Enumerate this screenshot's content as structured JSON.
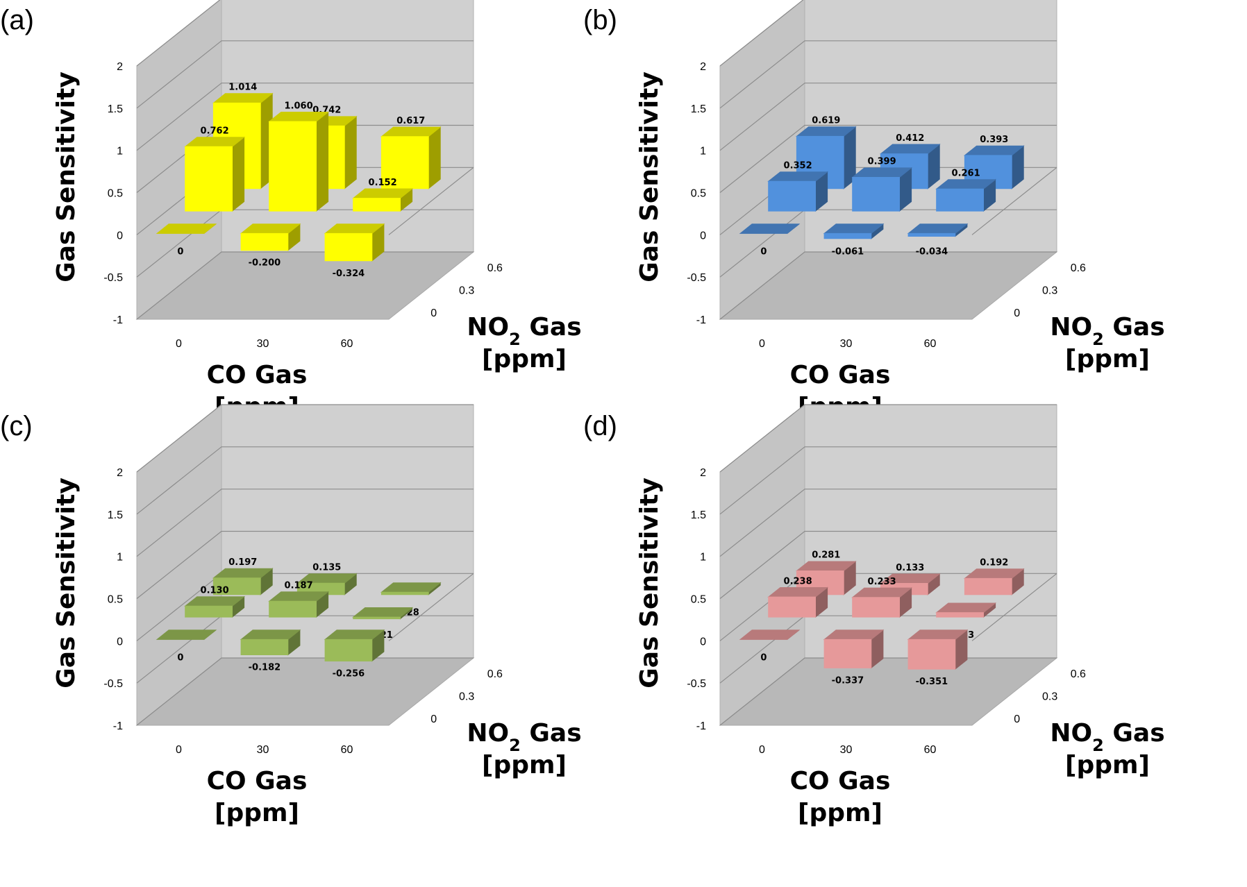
{
  "chart_data": [
    {
      "panel_label": "(a)",
      "type": "bar3d",
      "ylabel": "Gas Sensitivity",
      "xlabel": [
        "CO Gas",
        "[ppm]"
      ],
      "zlabel": [
        "NO",
        "2",
        " Gas",
        "[ppm]"
      ],
      "x_categories": [
        "0",
        "30",
        "60"
      ],
      "z_categories": [
        "0",
        "0.3",
        "0.6"
      ],
      "y_ticks": [
        "-1",
        "-0.5",
        "0",
        "0.5",
        "1",
        "1.5",
        "2"
      ],
      "ylim": [
        -1,
        2
      ],
      "color": "#ffff00",
      "series": [
        {
          "z": "0",
          "values": [
            0,
            -0.2,
            -0.324
          ],
          "labels": [
            "0",
            "-0.200",
            "-0.324"
          ]
        },
        {
          "z": "0.3",
          "values": [
            0.762,
            1.06,
            0.152
          ],
          "labels": [
            "0.762",
            "1.060",
            "0.152"
          ]
        },
        {
          "z": "0.6",
          "values": [
            1.014,
            0.742,
            0.617
          ],
          "labels": [
            "1.014",
            "0.742",
            "0.617"
          ]
        }
      ]
    },
    {
      "panel_label": "(b)",
      "type": "bar3d",
      "ylabel": "Gas Sensitivity",
      "xlabel": [
        "CO Gas",
        "[ppm]"
      ],
      "zlabel": [
        "NO",
        "2",
        " Gas",
        "[ppm]"
      ],
      "x_categories": [
        "0",
        "30",
        "60"
      ],
      "z_categories": [
        "0",
        "0.3",
        "0.6"
      ],
      "y_ticks": [
        "-1",
        "-0.5",
        "0",
        "0.5",
        "1",
        "1.5",
        "2"
      ],
      "ylim": [
        -1,
        2
      ],
      "color": "#5191dd",
      "series": [
        {
          "z": "0",
          "values": [
            0,
            -0.061,
            -0.034
          ],
          "labels": [
            "0",
            "-0.061",
            "-0.034"
          ]
        },
        {
          "z": "0.3",
          "values": [
            0.352,
            0.399,
            0.261
          ],
          "labels": [
            "0.352",
            "0.399",
            "0.261"
          ]
        },
        {
          "z": "0.6",
          "values": [
            0.619,
            0.412,
            0.393
          ],
          "labels": [
            "0.619",
            "0.412",
            "0.393"
          ]
        }
      ]
    },
    {
      "panel_label": "(c)",
      "type": "bar3d",
      "ylabel": "Gas Sensitivity",
      "xlabel": [
        "CO Gas",
        "[ppm]"
      ],
      "zlabel": [
        "NO",
        "2",
        " Gas",
        "[ppm]"
      ],
      "x_categories": [
        "0",
        "30",
        "60"
      ],
      "z_categories": [
        "0",
        "0.3",
        "0.6"
      ],
      "y_ticks": [
        "-1",
        "-0.5",
        "0",
        "0.5",
        "1",
        "1.5",
        "2"
      ],
      "ylim": [
        -1,
        2
      ],
      "color": "#9bbb59",
      "series": [
        {
          "z": "0",
          "values": [
            0,
            -0.182,
            -0.256
          ],
          "labels": [
            "0",
            "-0.182",
            "-0.256"
          ]
        },
        {
          "z": "0.3",
          "values": [
            0.13,
            0.187,
            -0.021
          ],
          "labels": [
            "0.130",
            "0.187",
            "-0.021"
          ]
        },
        {
          "z": "0.6",
          "values": [
            0.197,
            0.135,
            0.028
          ],
          "labels": [
            "0.197",
            "0.135",
            "0.028"
          ]
        }
      ]
    },
    {
      "panel_label": "(d)",
      "type": "bar3d",
      "ylabel": "Gas Sensitivity",
      "xlabel": [
        "CO Gas",
        "[ppm]"
      ],
      "zlabel": [
        "NO",
        "2",
        " Gas",
        "[ppm]"
      ],
      "x_categories": [
        "0",
        "30",
        "60"
      ],
      "z_categories": [
        "0",
        "0.3",
        "0.6"
      ],
      "y_ticks": [
        "-1",
        "-0.5",
        "0",
        "0.5",
        "1",
        "1.5",
        "2"
      ],
      "ylim": [
        -1,
        2
      ],
      "color": "#e6999a",
      "series": [
        {
          "z": "0",
          "values": [
            0,
            -0.337,
            -0.351
          ],
          "labels": [
            "0",
            "-0.337",
            "-0.351"
          ]
        },
        {
          "z": "0.3",
          "values": [
            0.238,
            0.233,
            0.053
          ],
          "labels": [
            "0.238",
            "0.233",
            "0.053"
          ]
        },
        {
          "z": "0.6",
          "values": [
            0.281,
            0.133,
            0.192
          ],
          "labels": [
            "0.281",
            "0.133",
            "0.192"
          ]
        }
      ]
    }
  ]
}
